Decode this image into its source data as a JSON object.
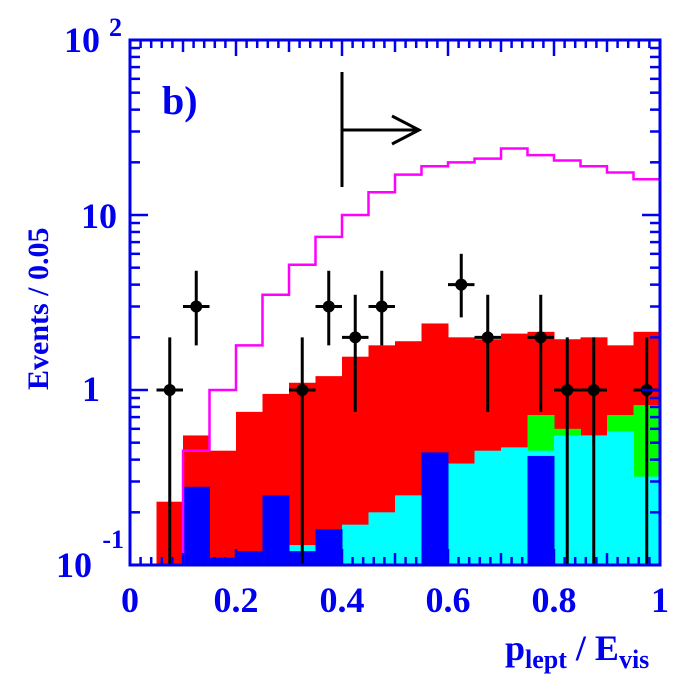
{
  "panel_label": "b)",
  "colors": {
    "axis_text": "#0000ee",
    "red_hist": "#ff0000",
    "blue_hist": "#0000ff",
    "cyan_hist": "#00ffff",
    "green_hist": "#00ff00",
    "signal_line": "#ff00ff",
    "data_points": "#000000"
  },
  "chart_data": {
    "type": "histogram",
    "title": "",
    "xlabel_main": "p",
    "xlabel_sub": "lept",
    "xlabel_mid": " / E",
    "xlabel_sub2": "vis",
    "ylabel": "Events / 0.05",
    "x_range": [
      0,
      1
    ],
    "y_range": [
      0.1,
      100
    ],
    "y_scale": "log",
    "x_ticks": [
      "0",
      "0.2",
      "0.4",
      "0.6",
      "0.8",
      "1"
    ],
    "y_ticks": {
      "t100_base": "10",
      "t100_exp": "2",
      "t10": "10",
      "t1": "1",
      "t01_base": "10",
      "t01_exp": "-1"
    },
    "bin_edges": [
      0,
      0.05,
      0.1,
      0.15,
      0.2,
      0.25,
      0.3,
      0.35,
      0.4,
      0.45,
      0.5,
      0.55,
      0.6,
      0.65,
      0.7,
      0.75,
      0.8,
      0.85,
      0.9,
      0.95,
      1.0
    ],
    "red_total": [
      0.1,
      0.23,
      0.55,
      0.45,
      0.75,
      0.95,
      1.1,
      1.2,
      1.55,
      1.8,
      1.9,
      2.4,
      2.0,
      1.95,
      2.1,
      2.15,
      1.95,
      2.0,
      1.8,
      2.15
    ],
    "green_total": [
      0,
      0,
      0,
      0,
      0,
      0,
      0,
      0,
      0,
      0,
      0,
      0,
      0,
      0,
      0,
      0.72,
      0.6,
      0.55,
      0.72,
      0.82
    ],
    "cyan": [
      0,
      0,
      0.1,
      0.1,
      0.1,
      0.1,
      0.13,
      0.13,
      0.17,
      0.2,
      0.25,
      0.42,
      0.38,
      0.45,
      0.47,
      0.45,
      0.55,
      0.55,
      0.58,
      0.32
    ],
    "blue_total": [
      0,
      0,
      0.28,
      0.11,
      0.12,
      0.25,
      0.12,
      0.16,
      0,
      0,
      0,
      0.44,
      0,
      0,
      0,
      0.42,
      0,
      0,
      0,
      0
    ],
    "signal": [
      0.1,
      0.1,
      0.45,
      1.0,
      1.8,
      3.5,
      5.2,
      7.5,
      10.0,
      13.5,
      17.0,
      19.0,
      20.0,
      21.0,
      24.0,
      22.0,
      20.5,
      19.0,
      17.5,
      16.0
    ],
    "data_points": [
      {
        "x": 0.075,
        "y": 1,
        "ylo": 0.1,
        "yhi": 2
      },
      {
        "x": 0.125,
        "y": 3,
        "ylo": 1.8,
        "yhi": 4.8
      },
      {
        "x": 0.325,
        "y": 1,
        "ylo": 0.1,
        "yhi": 2
      },
      {
        "x": 0.375,
        "y": 3,
        "ylo": 1.8,
        "yhi": 4.8
      },
      {
        "x": 0.425,
        "y": 2,
        "ylo": 0.75,
        "yhi": 3.5
      },
      {
        "x": 0.475,
        "y": 3,
        "ylo": 1.8,
        "yhi": 4.8
      },
      {
        "x": 0.625,
        "y": 4,
        "ylo": 2.6,
        "yhi": 6.0
      },
      {
        "x": 0.675,
        "y": 2,
        "ylo": 0.75,
        "yhi": 3.5
      },
      {
        "x": 0.775,
        "y": 2,
        "ylo": 0.75,
        "yhi": 3.5
      },
      {
        "x": 0.825,
        "y": 1,
        "ylo": 0.1,
        "yhi": 2
      },
      {
        "x": 0.875,
        "y": 1,
        "ylo": 0.1,
        "yhi": 2
      },
      {
        "x": 0.975,
        "y": 1,
        "ylo": 0.1,
        "yhi": 2
      }
    ],
    "cut_x": 0.4,
    "grid": false
  }
}
